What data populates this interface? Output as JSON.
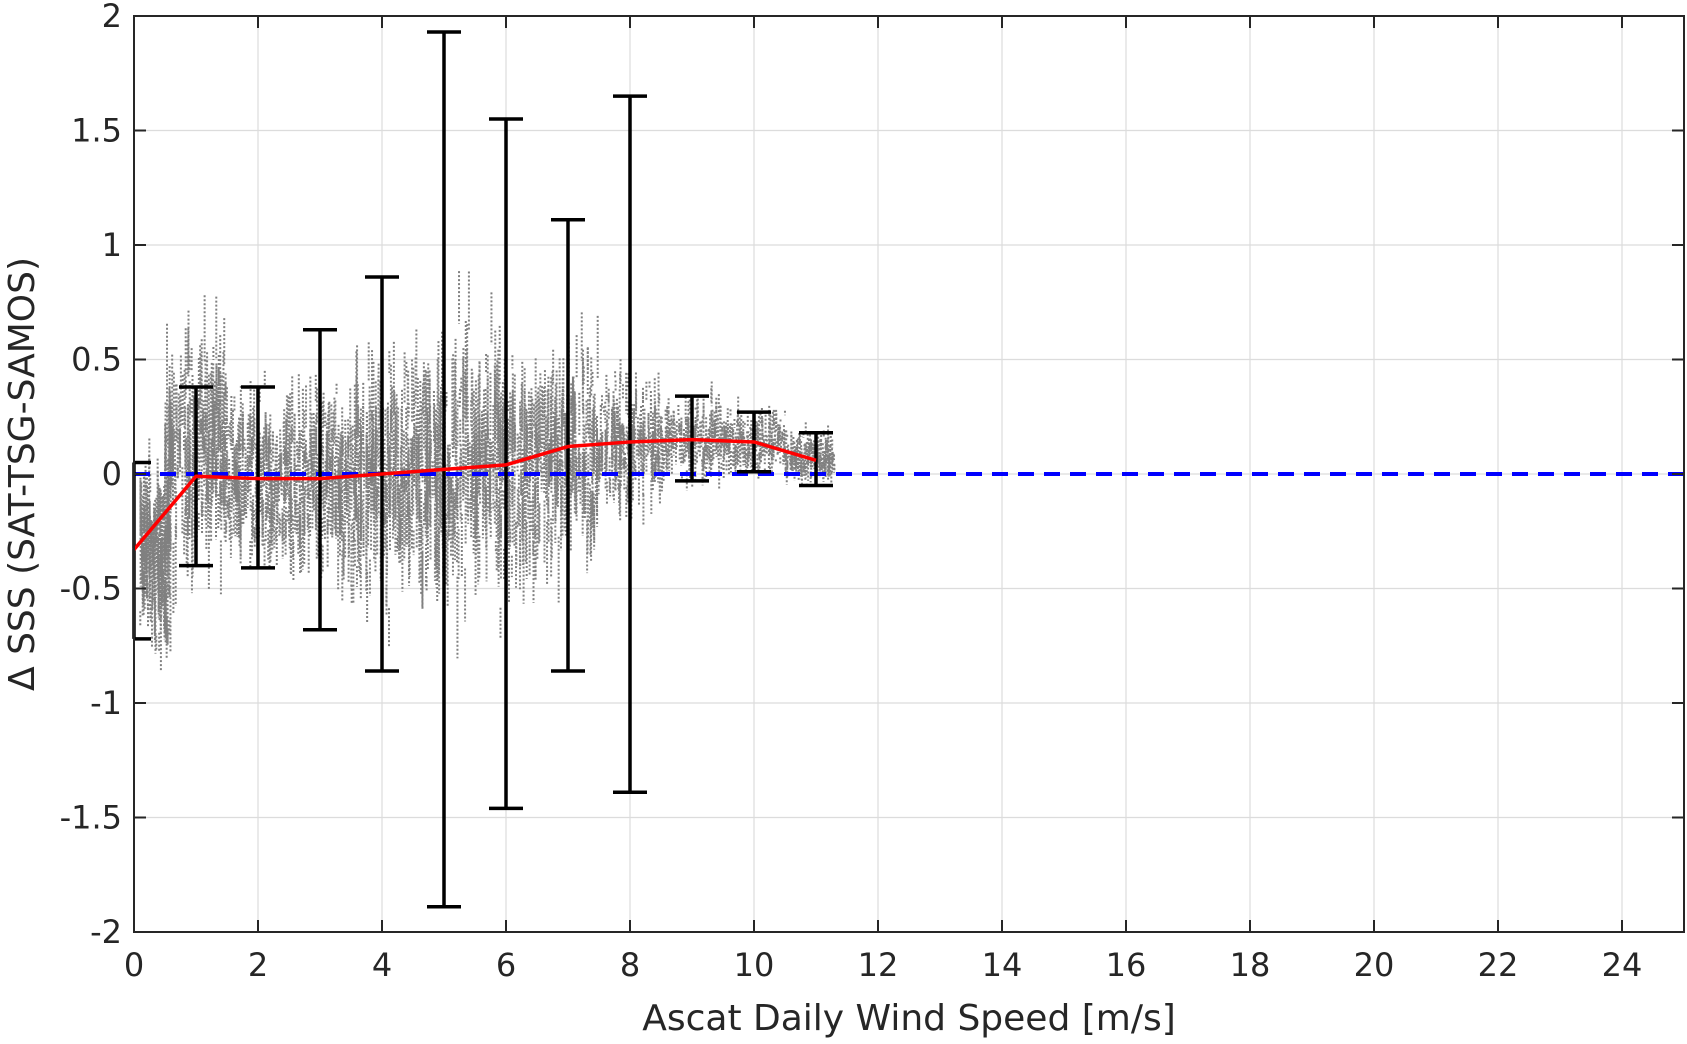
{
  "chart_data": {
    "type": "scatter",
    "xlabel": "Ascat Daily Wind Speed [m/s]",
    "ylabel": "Δ SSS (SAT-TSG-SAMOS)",
    "xlim": [
      0,
      25
    ],
    "ylim": [
      -2,
      2
    ],
    "x_ticks": [
      "0",
      "2",
      "4",
      "6",
      "8",
      "10",
      "12",
      "14",
      "16",
      "18",
      "20",
      "22",
      "24"
    ],
    "y_ticks": [
      "-2",
      "-1.5",
      "-1",
      "-0.5",
      "0",
      "0.5",
      "1",
      "1.5",
      "2"
    ],
    "grid": true,
    "colors": {
      "scatter": "#808080",
      "mean_line": "#ff0000",
      "error_bars": "#000000",
      "zero_line": "#0000ff"
    },
    "mean_line": {
      "x": [
        0,
        1,
        2,
        3,
        4,
        5,
        6,
        7,
        8,
        9,
        10,
        11
      ],
      "y": [
        -0.33,
        -0.01,
        -0.02,
        -0.02,
        0.0,
        0.02,
        0.04,
        0.12,
        0.14,
        0.15,
        0.14,
        0.06
      ]
    },
    "error_bars": [
      {
        "x": 0,
        "lower": -0.72,
        "upper": 0.05
      },
      {
        "x": 1,
        "lower": -0.4,
        "upper": 0.38
      },
      {
        "x": 2,
        "lower": -0.41,
        "upper": 0.38
      },
      {
        "x": 3,
        "lower": -0.68,
        "upper": 0.63
      },
      {
        "x": 4,
        "lower": -0.86,
        "upper": 0.86
      },
      {
        "x": 5,
        "lower": -1.89,
        "upper": 1.93
      },
      {
        "x": 6,
        "lower": -1.46,
        "upper": 1.55
      },
      {
        "x": 7,
        "lower": -0.86,
        "upper": 1.11
      },
      {
        "x": 8,
        "lower": -1.39,
        "upper": 1.65
      },
      {
        "x": 9,
        "lower": -0.03,
        "upper": 0.34
      },
      {
        "x": 10,
        "lower": 0.01,
        "upper": 0.27
      },
      {
        "x": 11,
        "lower": -0.05,
        "upper": 0.18
      }
    ],
    "zero_line_y": 0,
    "scatter_clusters": [
      {
        "x_min": 0.1,
        "x_max": 0.6,
        "y_center": -0.35,
        "spread": 0.35
      },
      {
        "x_min": 0.5,
        "x_max": 1.5,
        "y_center": 0.1,
        "spread": 0.45
      },
      {
        "x_min": 1.5,
        "x_max": 2.5,
        "y_center": -0.02,
        "spread": 0.3
      },
      {
        "x_min": 2.5,
        "x_max": 3.5,
        "y_center": -0.02,
        "spread": 0.35
      },
      {
        "x_min": 3.5,
        "x_max": 4.5,
        "y_center": 0.0,
        "spread": 0.45
      },
      {
        "x_min": 4.5,
        "x_max": 5.5,
        "y_center": 0.02,
        "spread": 0.5
      },
      {
        "x_min": 5.5,
        "x_max": 6.5,
        "y_center": 0.05,
        "spread": 0.45
      },
      {
        "x_min": 6.5,
        "x_max": 7.5,
        "y_center": 0.1,
        "spread": 0.4
      },
      {
        "x_min": 7.5,
        "x_max": 8.5,
        "y_center": 0.14,
        "spread": 0.25
      },
      {
        "x_min": 8.5,
        "x_max": 9.5,
        "y_center": 0.15,
        "spread": 0.15
      },
      {
        "x_min": 9.5,
        "x_max": 10.5,
        "y_center": 0.14,
        "spread": 0.12
      },
      {
        "x_min": 10.5,
        "x_max": 11.3,
        "y_center": 0.07,
        "spread": 0.1
      }
    ]
  }
}
